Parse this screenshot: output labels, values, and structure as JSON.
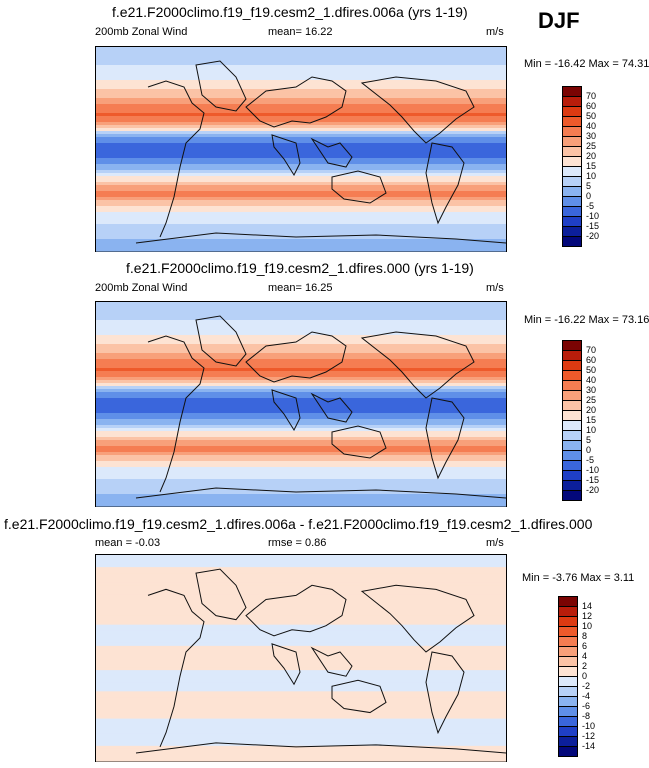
{
  "season": "DJF",
  "panels": [
    {
      "title": "f.e21.F2000climo.f19_f19.cesm2_1.dfires.006a (yrs 1-19)",
      "left_label": "200mb Zonal Wind",
      "mid_label": "mean=  16.22",
      "units": "m/s",
      "minmax": "Min = -16.42 Max =  74.31",
      "colorbar": {
        "labels": [
          "70",
          "60",
          "50",
          "40",
          "30",
          "25",
          "20",
          "15",
          "10",
          "5",
          "0",
          "-5",
          "-10",
          "-15",
          "-20"
        ],
        "colors": [
          "#7a0403",
          "#b81d0b",
          "#dd3a12",
          "#ee5a2b",
          "#f57d52",
          "#f8a07a",
          "#fbc3a6",
          "#fde3d3",
          "#dce9fb",
          "#b7d1f7",
          "#8ab3f0",
          "#5f8fe8",
          "#3a66dc",
          "#1f3fc6",
          "#0c1f9a",
          "#03087a"
        ]
      },
      "mean_profile": [
        {
          "lat": 90,
          "value": 8
        },
        {
          "lat": 75,
          "value": 10
        },
        {
          "lat": 60,
          "value": 15
        },
        {
          "lat": 45,
          "value": 25
        },
        {
          "lat": 30,
          "value": 42
        },
        {
          "lat": 20,
          "value": 22
        },
        {
          "lat": 10,
          "value": -3
        },
        {
          "lat": 0,
          "value": -8
        },
        {
          "lat": -10,
          "value": -4
        },
        {
          "lat": -20,
          "value": 8
        },
        {
          "lat": -30,
          "value": 22
        },
        {
          "lat": -40,
          "value": 32
        },
        {
          "lat": -50,
          "value": 20
        },
        {
          "lat": -60,
          "value": 12
        },
        {
          "lat": -75,
          "value": 6
        },
        {
          "lat": -90,
          "value": 2
        }
      ]
    },
    {
      "title": "f.e21.F2000climo.f19_f19.cesm2_1.dfires.000 (yrs 1-19)",
      "left_label": "200mb Zonal Wind",
      "mid_label": "mean=  16.25",
      "units": "m/s",
      "minmax": "Min = -16.22 Max =  73.16",
      "colorbar": {
        "labels": [
          "70",
          "60",
          "50",
          "40",
          "30",
          "25",
          "20",
          "15",
          "10",
          "5",
          "0",
          "-5",
          "-10",
          "-15",
          "-20"
        ],
        "colors": [
          "#7a0403",
          "#b81d0b",
          "#dd3a12",
          "#ee5a2b",
          "#f57d52",
          "#f8a07a",
          "#fbc3a6",
          "#fde3d3",
          "#dce9fb",
          "#b7d1f7",
          "#8ab3f0",
          "#5f8fe8",
          "#3a66dc",
          "#1f3fc6",
          "#0c1f9a",
          "#03087a"
        ]
      },
      "mean_profile": [
        {
          "lat": 90,
          "value": 8
        },
        {
          "lat": 75,
          "value": 10
        },
        {
          "lat": 60,
          "value": 15
        },
        {
          "lat": 45,
          "value": 25
        },
        {
          "lat": 30,
          "value": 41
        },
        {
          "lat": 20,
          "value": 22
        },
        {
          "lat": 10,
          "value": -3
        },
        {
          "lat": 0,
          "value": -8
        },
        {
          "lat": -10,
          "value": -4
        },
        {
          "lat": -20,
          "value": 8
        },
        {
          "lat": -30,
          "value": 22
        },
        {
          "lat": -40,
          "value": 32
        },
        {
          "lat": -50,
          "value": 20
        },
        {
          "lat": -60,
          "value": 12
        },
        {
          "lat": -75,
          "value": 6
        },
        {
          "lat": -90,
          "value": 2
        }
      ]
    },
    {
      "title": "f.e21.F2000climo.f19_f19.cesm2_1.dfires.006a - f.e21.F2000climo.f19_f19.cesm2_1.dfires.000",
      "left_label": "mean =  -0.03",
      "mid_label": "rmse =   0.86",
      "units": "m/s",
      "minmax": "Min =  -3.76 Max =   3.11",
      "colorbar": {
        "labels": [
          "14",
          "12",
          "10",
          "8",
          "6",
          "4",
          "2",
          "0",
          "-2",
          "-4",
          "-6",
          "-8",
          "-10",
          "-12",
          "-14"
        ],
        "colors": [
          "#7a0403",
          "#b81d0b",
          "#dd3a12",
          "#ee5a2b",
          "#f57d52",
          "#f8a07a",
          "#fbc3a6",
          "#fde3d3",
          "#dce9fb",
          "#b7d1f7",
          "#8ab3f0",
          "#5f8fe8",
          "#3a66dc",
          "#1f3fc6",
          "#0c1f9a",
          "#03087a"
        ]
      },
      "mean_profile": [
        {
          "lat": 90,
          "value": -0.5
        },
        {
          "lat": 60,
          "value": 0.8
        },
        {
          "lat": 40,
          "value": 0.5
        },
        {
          "lat": 20,
          "value": -0.5
        },
        {
          "lat": 0,
          "value": 0.6
        },
        {
          "lat": -20,
          "value": -0.6
        },
        {
          "lat": -40,
          "value": 0.7
        },
        {
          "lat": -60,
          "value": -0.4
        },
        {
          "lat": -90,
          "value": 0.3
        }
      ]
    }
  ],
  "chart_data": [
    {
      "type": "heatmap",
      "title": "f.e21.F2000climo.f19_f19.cesm2_1.dfires.006a (yrs 1-19)",
      "variable": "200mb Zonal Wind",
      "units": "m/s",
      "mean": 16.22,
      "min": -16.42,
      "max": 74.31,
      "levels": [
        -20,
        -15,
        -10,
        -5,
        0,
        5,
        10,
        15,
        20,
        25,
        30,
        40,
        50,
        60,
        70
      ]
    },
    {
      "type": "heatmap",
      "title": "f.e21.F2000climo.f19_f19.cesm2_1.dfires.000 (yrs 1-19)",
      "variable": "200mb Zonal Wind",
      "units": "m/s",
      "mean": 16.25,
      "min": -16.22,
      "max": 73.16,
      "levels": [
        -20,
        -15,
        -10,
        -5,
        0,
        5,
        10,
        15,
        20,
        25,
        30,
        40,
        50,
        60,
        70
      ]
    },
    {
      "type": "heatmap",
      "title": "f.e21.F2000climo.f19_f19.cesm2_1.dfires.006a - f.e21.F2000climo.f19_f19.cesm2_1.dfires.000",
      "units": "m/s",
      "mean": -0.03,
      "rmse": 0.86,
      "min": -3.76,
      "max": 3.11,
      "levels": [
        -14,
        -12,
        -10,
        -8,
        -6,
        -4,
        -2,
        0,
        2,
        4,
        6,
        8,
        10,
        12,
        14
      ]
    }
  ]
}
